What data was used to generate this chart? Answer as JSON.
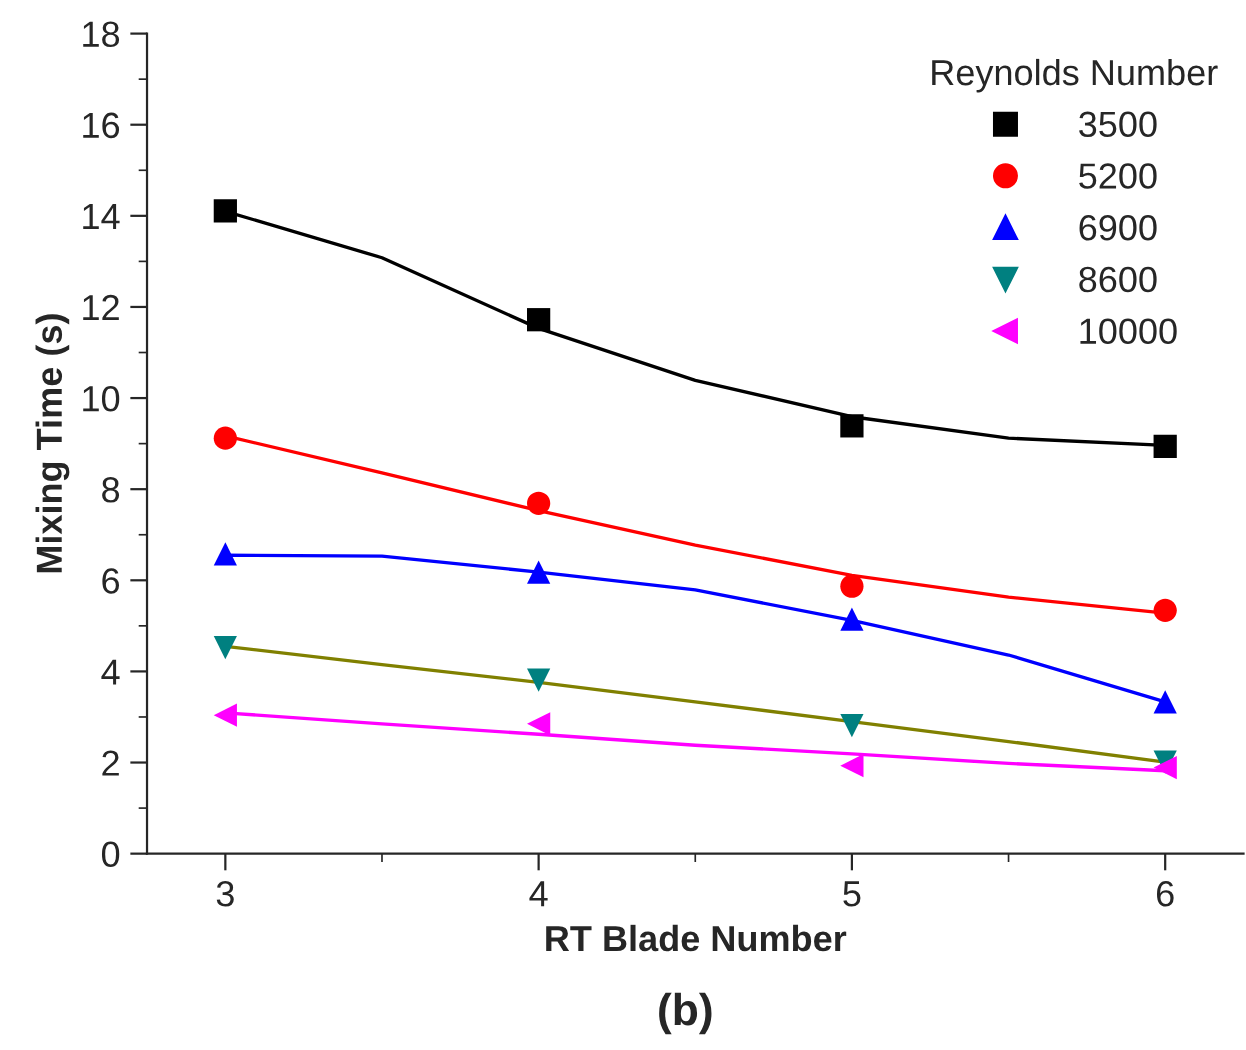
{
  "chart_data": {
    "type": "scatter",
    "xlabel": "RT Blade Number",
    "ylabel": "Mixing Time (s)",
    "legend_title": "Reynolds Number",
    "legend": "top right",
    "grid": false,
    "xlim": [
      2.75,
      6.25
    ],
    "xticks": [
      3,
      4,
      5,
      6
    ],
    "ylim": [
      0,
      18
    ],
    "yticks": [
      0,
      2,
      4,
      6,
      8,
      10,
      12,
      14,
      16,
      18
    ],
    "x": [
      3,
      4,
      5,
      6
    ],
    "series": [
      {
        "name": "3500",
        "color": "#000000",
        "marker": "square",
        "values": [
          14.11,
          11.72,
          9.39,
          8.94
        ]
      },
      {
        "name": "5200",
        "color": "#ff0000",
        "marker": "circle",
        "values": [
          9.12,
          7.69,
          5.87,
          5.34
        ]
      },
      {
        "name": "6900",
        "color": "#0000ff",
        "marker": "triangle",
        "values": [
          6.58,
          6.18,
          5.15,
          3.33
        ]
      },
      {
        "name": "8600",
        "color": "#008080",
        "marker": "triangle_down",
        "values": [
          4.52,
          3.81,
          2.81,
          2.01
        ]
      },
      {
        "name": "10000",
        "color": "#ff00ff",
        "marker": "triangle_left",
        "values": [
          3.04,
          2.85,
          1.93,
          1.89
        ]
      },
      {
        "type": "line",
        "color": "#000000",
        "x": [
          3,
          3.5,
          4,
          4.5,
          5,
          5.5,
          6
        ],
        "values": [
          14.1,
          13.08,
          11.53,
          10.39,
          9.59,
          9.12,
          8.96
        ]
      },
      {
        "type": "line",
        "color": "#ff0000",
        "x": [
          3,
          3.5,
          4,
          4.5,
          5,
          5.5,
          6
        ],
        "values": [
          9.17,
          8.36,
          7.53,
          6.77,
          6.11,
          5.63,
          5.28
        ]
      },
      {
        "type": "line",
        "color": "#0000ff",
        "x": [
          3,
          3.5,
          4,
          4.5,
          5,
          5.5,
          6
        ],
        "values": [
          6.55,
          6.53,
          6.18,
          5.79,
          5.12,
          4.36,
          3.33
        ]
      },
      {
        "type": "line",
        "color": "#808000",
        "x": [
          3,
          3.5,
          4,
          4.5,
          5,
          5.5,
          6
        ],
        "values": [
          4.55,
          4.15,
          3.76,
          3.33,
          2.9,
          2.46,
          2.01
        ]
      },
      {
        "type": "line",
        "color": "#ff00ff",
        "x": [
          3,
          3.5,
          4,
          4.5,
          5,
          5.5,
          6
        ],
        "values": [
          3.09,
          2.85,
          2.62,
          2.38,
          2.19,
          1.98,
          1.82
        ]
      }
    ],
    "annotations": [
      "(b)"
    ]
  }
}
